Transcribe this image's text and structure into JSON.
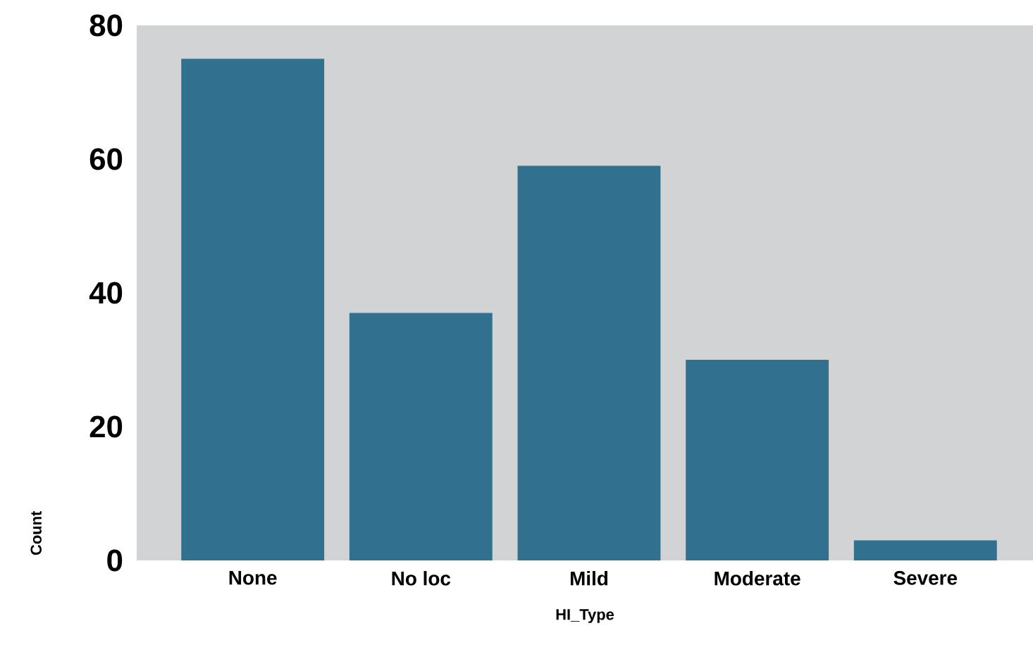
{
  "chart_data": {
    "type": "bar",
    "xlabel": "HI_Type",
    "ylabel": "Count",
    "categories": [
      "None",
      "No loc",
      "Mild",
      "Moderate",
      "Severe"
    ],
    "values": [
      75,
      37,
      59,
      30,
      3
    ],
    "color": "#31708f",
    "ylim": [
      0,
      80
    ],
    "yticks": [
      0,
      20,
      40,
      60,
      80
    ]
  }
}
